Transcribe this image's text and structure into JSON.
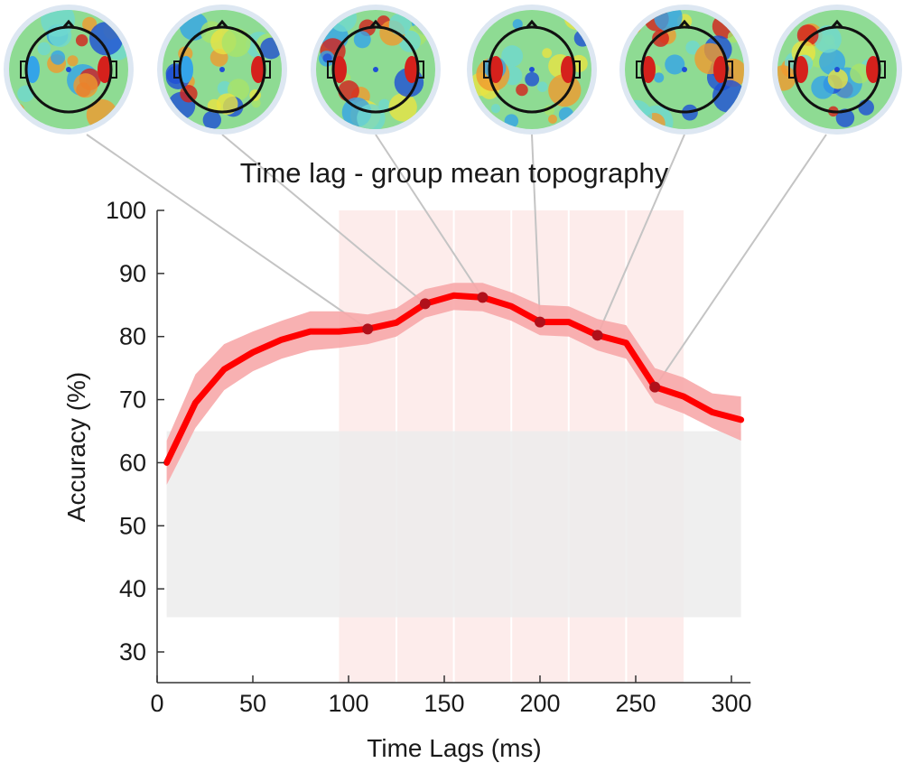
{
  "chart_data": {
    "type": "line",
    "title": "Time lag - group mean topography",
    "xlabel": "Time Lags (ms)",
    "ylabel": "Accuracy (%)",
    "xlim": [
      0,
      310
    ],
    "ylim": [
      25,
      100
    ],
    "xticks": [
      0,
      50,
      100,
      150,
      200,
      250,
      300
    ],
    "yticks": [
      30,
      40,
      50,
      60,
      70,
      80,
      90,
      100
    ],
    "grid": false,
    "series": [
      {
        "name": "Accuracy",
        "color": "#ff0000",
        "band_color": "#f7a8aa",
        "x": [
          5,
          20,
          35,
          50,
          65,
          80,
          95,
          110,
          125,
          140,
          155,
          170,
          185,
          200,
          215,
          230,
          245,
          260,
          275,
          290,
          305
        ],
        "values": [
          60,
          69.5,
          74.8,
          77.5,
          79.5,
          80.8,
          80.8,
          81.2,
          82.2,
          85.2,
          86.5,
          86.2,
          84.8,
          82.3,
          82.3,
          80.2,
          79,
          72,
          70.5,
          68,
          66.8
        ],
        "lower": [
          56.5,
          65.5,
          71.5,
          74.5,
          76.5,
          77.8,
          78.2,
          78.8,
          80,
          83,
          84.2,
          84,
          82.5,
          80.2,
          80,
          77.8,
          76.5,
          69.5,
          67.8,
          65.5,
          63.5
        ],
        "upper": [
          63.5,
          74,
          78.8,
          80.8,
          82.5,
          84,
          84,
          83.5,
          84.5,
          87.5,
          88.5,
          88.5,
          87,
          85,
          84.8,
          82.8,
          81.8,
          75,
          73.5,
          71,
          70.5
        ]
      }
    ],
    "chance_band": {
      "y_low": 35.5,
      "y_high": 65,
      "x_start": 5,
      "x_end": 305,
      "color": "#ececec"
    },
    "highlight_windows": [
      {
        "x_start": 95,
        "x_end": 125
      },
      {
        "x_start": 125,
        "x_end": 155
      },
      {
        "x_start": 155,
        "x_end": 185
      },
      {
        "x_start": 185,
        "x_end": 215
      },
      {
        "x_start": 215,
        "x_end": 245
      },
      {
        "x_start": 245,
        "x_end": 275
      }
    ],
    "highlight_color": "#fdeceb",
    "marked_points": [
      {
        "x": 110,
        "y": 81.2
      },
      {
        "x": 140,
        "y": 85.2
      },
      {
        "x": 170,
        "y": 86.2
      },
      {
        "x": 200,
        "y": 82.3
      },
      {
        "x": 230,
        "y": 80.2
      },
      {
        "x": 260,
        "y": 72
      }
    ],
    "topographies": [
      {
        "name": "topo-110ms",
        "x": 110
      },
      {
        "name": "topo-140ms",
        "x": 140
      },
      {
        "name": "topo-170ms",
        "x": 170
      },
      {
        "name": "topo-200ms",
        "x": 200
      },
      {
        "name": "topo-230ms",
        "x": 230
      },
      {
        "name": "topo-260ms",
        "x": 260
      }
    ]
  }
}
